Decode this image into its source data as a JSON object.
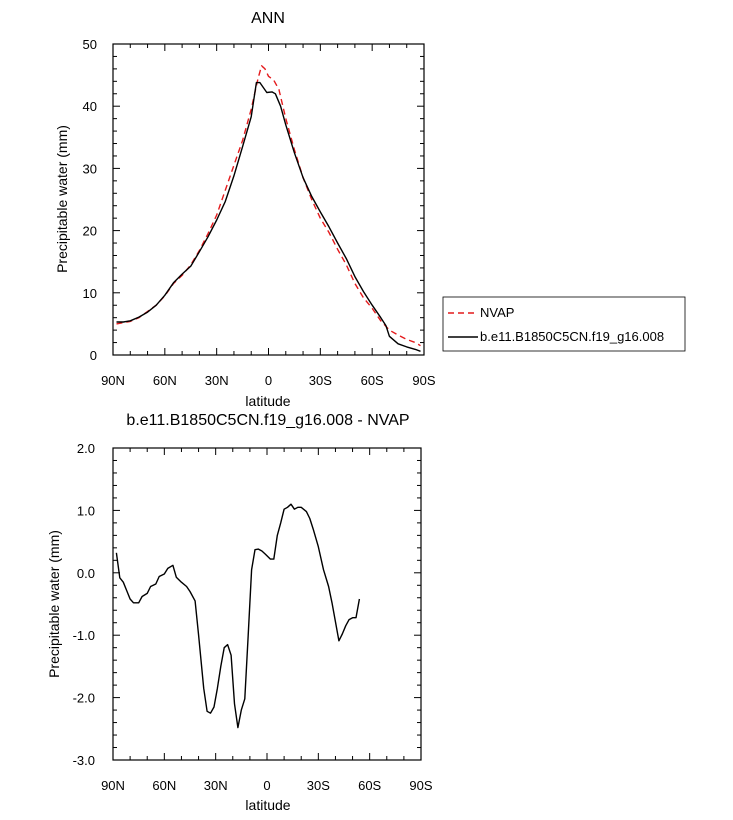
{
  "chart_data": [
    {
      "type": "line",
      "title": "ANN",
      "xlabel": "latitude",
      "ylabel": "Precipitable water (mm)",
      "xlim": [
        90,
        -90
      ],
      "ylim": [
        0,
        50
      ],
      "x_ticks": [
        90,
        60,
        30,
        0,
        -30,
        -60,
        -90
      ],
      "x_tick_labels": [
        "90N",
        "60N",
        "30N",
        "0",
        "30S",
        "60S",
        "90S"
      ],
      "y_ticks": [
        0,
        10,
        20,
        30,
        40,
        50
      ],
      "y_tick_labels": [
        "0",
        "10",
        "20",
        "30",
        "40",
        "50"
      ],
      "legend_position": "right",
      "series": [
        {
          "name": "NVAP",
          "color": "#e41a1c",
          "dash": "dashed",
          "points": [
            [
              88,
              5.0
            ],
            [
              84,
              5.2
            ],
            [
              80,
              5.4
            ],
            [
              75,
              6.0
            ],
            [
              70,
              7.0
            ],
            [
              65,
              8.0
            ],
            [
              60,
              9.5
            ],
            [
              55,
              11.5
            ],
            [
              50,
              12.8
            ],
            [
              45,
              14.5
            ],
            [
              40,
              16.8
            ],
            [
              35,
              19.5
            ],
            [
              30,
              22.5
            ],
            [
              25,
              26.5
            ],
            [
              20,
              30.5
            ],
            [
              15,
              34.5
            ],
            [
              10,
              39.5
            ],
            [
              6,
              44.5
            ],
            [
              4,
              46.5
            ],
            [
              2,
              46.0
            ],
            [
              0,
              44.8
            ],
            [
              -3,
              44.2
            ],
            [
              -6,
              42.7
            ],
            [
              -10,
              38.0
            ],
            [
              -15,
              33.0
            ],
            [
              -20,
              28.5
            ],
            [
              -25,
              25.0
            ],
            [
              -30,
              22.0
            ],
            [
              -35,
              19.7
            ],
            [
              -40,
              17.0
            ],
            [
              -45,
              14.5
            ],
            [
              -50,
              11.5
            ],
            [
              -55,
              9.2
            ],
            [
              -60,
              7.5
            ],
            [
              -65,
              5.5
            ],
            [
              -70,
              4.0
            ],
            [
              -75,
              3.2
            ],
            [
              -80,
              2.5
            ],
            [
              -85,
              2.0
            ],
            [
              -88,
              1.5
            ]
          ]
        },
        {
          "name": "b.e11.B1850C5CN.f19_g16.008",
          "color": "#000000",
          "dash": "solid",
          "points": [
            [
              88,
              5.3
            ],
            [
              84,
              5.3
            ],
            [
              80,
              5.5
            ],
            [
              75,
              6.1
            ],
            [
              70,
              6.9
            ],
            [
              65,
              8.0
            ],
            [
              60,
              9.6
            ],
            [
              55,
              11.6
            ],
            [
              50,
              13.0
            ],
            [
              45,
              14.3
            ],
            [
              40,
              16.6
            ],
            [
              35,
              19.0
            ],
            [
              30,
              21.7
            ],
            [
              25,
              24.7
            ],
            [
              20,
              28.8
            ],
            [
              15,
              33.5
            ],
            [
              10,
              38.3
            ],
            [
              7,
              43.8
            ],
            [
              5,
              43.8
            ],
            [
              3,
              43.0
            ],
            [
              1,
              42.2
            ],
            [
              -2,
              42.3
            ],
            [
              -4,
              42.0
            ],
            [
              -7,
              40.0
            ],
            [
              -10,
              37.0
            ],
            [
              -15,
              32.5
            ],
            [
              -20,
              28.5
            ],
            [
              -25,
              25.5
            ],
            [
              -30,
              23.0
            ],
            [
              -35,
              20.6
            ],
            [
              -40,
              18.0
            ],
            [
              -45,
              15.5
            ],
            [
              -50,
              12.6
            ],
            [
              -55,
              10.2
            ],
            [
              -60,
              8.0
            ],
            [
              -65,
              6.0
            ],
            [
              -68,
              4.7
            ],
            [
              -70,
              3.0
            ],
            [
              -75,
              1.8
            ],
            [
              -80,
              1.3
            ],
            [
              -85,
              0.9
            ],
            [
              -88,
              0.6
            ]
          ]
        }
      ]
    },
    {
      "type": "line",
      "title": "b.e11.B1850C5CN.f19_g16.008 - NVAP",
      "xlabel": "latitude",
      "ylabel": "Precipitable water (mm)",
      "xlim": [
        90,
        -90
      ],
      "ylim": [
        -3.0,
        2.0
      ],
      "x_ticks": [
        90,
        60,
        30,
        0,
        -30,
        -60,
        -90
      ],
      "x_tick_labels": [
        "90N",
        "60N",
        "30N",
        "0",
        "30S",
        "60S",
        "90S"
      ],
      "y_ticks": [
        2.0,
        1.0,
        0.0,
        -1.0,
        -2.0,
        -3.0
      ],
      "y_tick_labels": [
        "2.0",
        "1.0",
        "0.0",
        "-1.0",
        "-2.0",
        "-3.0"
      ],
      "series": [
        {
          "color": "#000000",
          "dash": "solid",
          "points": [
            [
              88,
              0.32
            ],
            [
              86,
              -0.08
            ],
            [
              84,
              -0.15
            ],
            [
              80,
              -0.42
            ],
            [
              78,
              -0.48
            ],
            [
              75,
              -0.48
            ],
            [
              73,
              -0.38
            ],
            [
              70,
              -0.33
            ],
            [
              68,
              -0.22
            ],
            [
              65,
              -0.18
            ],
            [
              63,
              -0.06
            ],
            [
              60,
              -0.02
            ],
            [
              58,
              0.07
            ],
            [
              55,
              0.12
            ],
            [
              53,
              -0.07
            ],
            [
              50,
              -0.15
            ],
            [
              47,
              -0.22
            ],
            [
              45,
              -0.3
            ],
            [
              42,
              -0.45
            ],
            [
              40,
              -1.0
            ],
            [
              37,
              -1.85
            ],
            [
              35,
              -2.22
            ],
            [
              33,
              -2.25
            ],
            [
              31,
              -2.15
            ],
            [
              29,
              -1.85
            ],
            [
              27,
              -1.5
            ],
            [
              25,
              -1.2
            ],
            [
              23,
              -1.15
            ],
            [
              21,
              -1.32
            ],
            [
              19,
              -2.1
            ],
            [
              17,
              -2.48
            ],
            [
              15,
              -2.2
            ],
            [
              13,
              -2.02
            ],
            [
              11,
              -1.0
            ],
            [
              9,
              0.05
            ],
            [
              7,
              0.37
            ],
            [
              5,
              0.38
            ],
            [
              3,
              0.35
            ],
            [
              1,
              0.3
            ],
            [
              -2,
              0.22
            ],
            [
              -4,
              0.22
            ],
            [
              -6,
              0.6
            ],
            [
              -8,
              0.8
            ],
            [
              -10,
              1.02
            ],
            [
              -12,
              1.05
            ],
            [
              -14,
              1.1
            ],
            [
              -16,
              1.02
            ],
            [
              -18,
              1.05
            ],
            [
              -20,
              1.05
            ],
            [
              -23,
              0.98
            ],
            [
              -25,
              0.87
            ],
            [
              -27,
              0.7
            ],
            [
              -30,
              0.42
            ],
            [
              -33,
              0.05
            ],
            [
              -36,
              -0.22
            ],
            [
              -38,
              -0.48
            ],
            [
              -40,
              -0.78
            ],
            [
              -42,
              -1.09
            ],
            [
              -44,
              -0.98
            ],
            [
              -46,
              -0.85
            ],
            [
              -48,
              -0.75
            ],
            [
              -50,
              -0.72
            ],
            [
              -52,
              -0.72
            ],
            [
              -54,
              -0.42
            ]
          ]
        }
      ]
    }
  ]
}
